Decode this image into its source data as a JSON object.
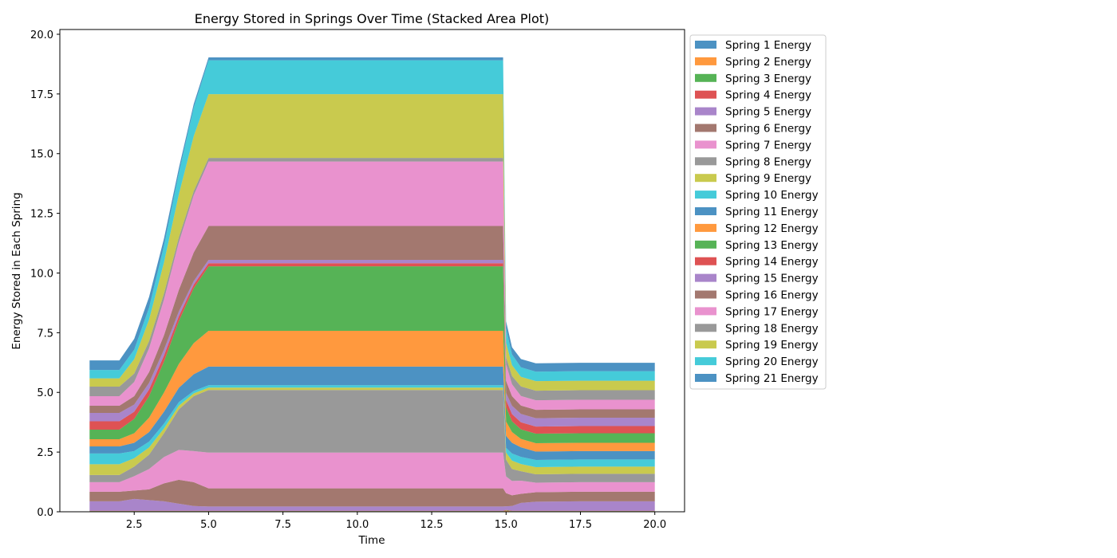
{
  "chart_data": {
    "type": "area",
    "stacked": true,
    "title": "Energy Stored in Springs Over Time (Stacked Area Plot)",
    "xlabel": "Time",
    "ylabel": "Energy Stored in Each Spring",
    "xlim": [
      0.0,
      21.0
    ],
    "ylim": [
      0.0,
      20.2
    ],
    "xticks": [
      2.5,
      5.0,
      7.5,
      10.0,
      12.5,
      15.0,
      17.5,
      20.0
    ],
    "xtick_labels": [
      "2.5",
      "5.0",
      "7.5",
      "10.0",
      "12.5",
      "15.0",
      "17.5",
      "20.0"
    ],
    "yticks": [
      0.0,
      2.5,
      5.0,
      7.5,
      10.0,
      12.5,
      15.0,
      17.5,
      20.0
    ],
    "ytick_labels": [
      "0.0",
      "2.5",
      "5.0",
      "7.5",
      "10.0",
      "12.5",
      "15.0",
      "17.5",
      "20.0"
    ],
    "grid": false,
    "legend_position": "outside-right",
    "x": [
      1.0,
      2.0,
      2.5,
      3.0,
      3.5,
      4.0,
      4.5,
      5.0,
      7.5,
      10.0,
      12.5,
      14.9,
      15.0,
      15.2,
      15.5,
      16.0,
      17.5,
      20.0
    ],
    "series": [
      {
        "name": "Spring 1 Energy",
        "color": "#1f77b4",
        "values": [
          0.01,
          0.01,
          0.01,
          0.01,
          0.01,
          0.01,
          0.01,
          0.01,
          0.01,
          0.01,
          0.01,
          0.01,
          0.02,
          0.01,
          0.01,
          0.01,
          0.01,
          0.01
        ]
      },
      {
        "name": "Spring 2 Energy",
        "color": "#ff7f0e",
        "values": [
          0.01,
          0.01,
          0.01,
          0.01,
          0.01,
          0.01,
          0.01,
          0.01,
          0.01,
          0.01,
          0.01,
          0.01,
          0.02,
          0.01,
          0.01,
          0.01,
          0.01,
          0.01
        ]
      },
      {
        "name": "Spring 3 Energy",
        "color": "#2ca02c",
        "values": [
          0.01,
          0.01,
          0.01,
          0.01,
          0.01,
          0.01,
          0.01,
          0.01,
          0.01,
          0.01,
          0.01,
          0.01,
          0.02,
          0.01,
          0.01,
          0.01,
          0.01,
          0.01
        ]
      },
      {
        "name": "Spring 4 Energy",
        "color": "#d62728",
        "values": [
          0.01,
          0.01,
          0.01,
          0.01,
          0.01,
          0.01,
          0.01,
          0.01,
          0.01,
          0.01,
          0.01,
          0.01,
          0.02,
          0.01,
          0.01,
          0.01,
          0.01,
          0.01
        ]
      },
      {
        "name": "Spring 5 Energy",
        "color": "#9467bd",
        "values": [
          0.4,
          0.4,
          0.5,
          0.45,
          0.4,
          0.3,
          0.2,
          0.18,
          0.18,
          0.18,
          0.18,
          0.18,
          0.15,
          0.2,
          0.33,
          0.38,
          0.4,
          0.4
        ]
      },
      {
        "name": "Spring 6 Energy",
        "color": "#8c564b",
        "values": [
          0.4,
          0.4,
          0.35,
          0.45,
          0.75,
          1.0,
          1.0,
          0.76,
          0.76,
          0.76,
          0.76,
          0.76,
          0.55,
          0.45,
          0.38,
          0.4,
          0.4,
          0.4
        ]
      },
      {
        "name": "Spring 7 Energy",
        "color": "#e377c2",
        "values": [
          0.4,
          0.4,
          0.6,
          0.85,
          1.1,
          1.25,
          1.3,
          1.5,
          1.5,
          1.5,
          1.5,
          1.5,
          0.7,
          0.6,
          0.55,
          0.4,
          0.4,
          0.4
        ]
      },
      {
        "name": "Spring 8 Energy",
        "color": "#7f7f7f",
        "values": [
          0.3,
          0.3,
          0.4,
          0.6,
          1.0,
          1.7,
          2.3,
          2.62,
          2.62,
          2.62,
          2.62,
          2.62,
          0.7,
          0.5,
          0.4,
          0.35,
          0.35,
          0.35
        ]
      },
      {
        "name": "Spring 9 Energy",
        "color": "#bcbd22",
        "values": [
          0.45,
          0.45,
          0.35,
          0.3,
          0.2,
          0.15,
          0.12,
          0.1,
          0.1,
          0.1,
          0.1,
          0.1,
          0.3,
          0.35,
          0.3,
          0.3,
          0.3,
          0.3
        ]
      },
      {
        "name": "Spring 10 Energy",
        "color": "#17becf",
        "values": [
          0.45,
          0.45,
          0.3,
          0.25,
          0.2,
          0.15,
          0.1,
          0.1,
          0.1,
          0.1,
          0.1,
          0.1,
          0.2,
          0.3,
          0.3,
          0.3,
          0.3,
          0.3
        ]
      },
      {
        "name": "Spring 11 Energy",
        "color": "#1f77b4",
        "values": [
          0.3,
          0.3,
          0.35,
          0.4,
          0.5,
          0.6,
          0.7,
          0.78,
          0.78,
          0.78,
          0.78,
          0.78,
          0.5,
          0.45,
          0.4,
          0.35,
          0.35,
          0.35
        ]
      },
      {
        "name": "Spring 12 Energy",
        "color": "#ff7f0e",
        "values": [
          0.3,
          0.3,
          0.4,
          0.6,
          0.8,
          1.0,
          1.3,
          1.5,
          1.5,
          1.5,
          1.5,
          1.5,
          0.6,
          0.45,
          0.35,
          0.35,
          0.35,
          0.35
        ]
      },
      {
        "name": "Spring 13 Energy",
        "color": "#2ca02c",
        "values": [
          0.4,
          0.4,
          0.6,
          0.9,
          1.3,
          1.8,
          2.3,
          2.7,
          2.7,
          2.7,
          2.7,
          2.7,
          0.6,
          0.45,
          0.4,
          0.4,
          0.4,
          0.4
        ]
      },
      {
        "name": "Spring 14 Energy",
        "color": "#d62728",
        "values": [
          0.35,
          0.35,
          0.3,
          0.28,
          0.25,
          0.2,
          0.15,
          0.13,
          0.13,
          0.13,
          0.13,
          0.13,
          0.3,
          0.3,
          0.3,
          0.3,
          0.3,
          0.3
        ]
      },
      {
        "name": "Spring 15 Energy",
        "color": "#9467bd",
        "values": [
          0.35,
          0.35,
          0.3,
          0.28,
          0.25,
          0.2,
          0.15,
          0.14,
          0.14,
          0.14,
          0.14,
          0.14,
          0.3,
          0.35,
          0.35,
          0.35,
          0.35,
          0.35
        ]
      },
      {
        "name": "Spring 16 Energy",
        "color": "#8c564b",
        "values": [
          0.3,
          0.3,
          0.35,
          0.45,
          0.6,
          0.9,
          1.2,
          1.42,
          1.42,
          1.42,
          1.42,
          1.42,
          0.5,
          0.4,
          0.35,
          0.35,
          0.35,
          0.35
        ]
      },
      {
        "name": "Spring 17 Energy",
        "color": "#e377c2",
        "values": [
          0.4,
          0.4,
          0.6,
          1.0,
          1.5,
          2.0,
          2.4,
          2.7,
          2.7,
          2.7,
          2.7,
          2.7,
          0.7,
          0.5,
          0.4,
          0.4,
          0.4,
          0.4
        ]
      },
      {
        "name": "Spring 18 Energy",
        "color": "#7f7f7f",
        "values": [
          0.4,
          0.4,
          0.35,
          0.3,
          0.25,
          0.2,
          0.17,
          0.15,
          0.15,
          0.15,
          0.15,
          0.15,
          0.3,
          0.35,
          0.4,
          0.4,
          0.4,
          0.4
        ]
      },
      {
        "name": "Spring 19 Energy",
        "color": "#bcbd22",
        "values": [
          0.35,
          0.35,
          0.6,
          0.9,
          1.3,
          1.8,
          2.3,
          2.67,
          2.67,
          2.67,
          2.67,
          2.67,
          0.6,
          0.45,
          0.4,
          0.4,
          0.4,
          0.4
        ]
      },
      {
        "name": "Spring 20 Energy",
        "color": "#17becf",
        "values": [
          0.35,
          0.35,
          0.4,
          0.5,
          0.7,
          0.9,
          1.2,
          1.42,
          1.42,
          1.42,
          1.42,
          1.42,
          0.6,
          0.45,
          0.4,
          0.4,
          0.4,
          0.4
        ]
      },
      {
        "name": "Spring 21 Energy",
        "color": "#1f77b4",
        "values": [
          0.4,
          0.4,
          0.45,
          0.45,
          0.3,
          0.2,
          0.15,
          0.12,
          0.12,
          0.12,
          0.12,
          0.12,
          0.3,
          0.3,
          0.35,
          0.35,
          0.35,
          0.35
        ]
      }
    ]
  }
}
